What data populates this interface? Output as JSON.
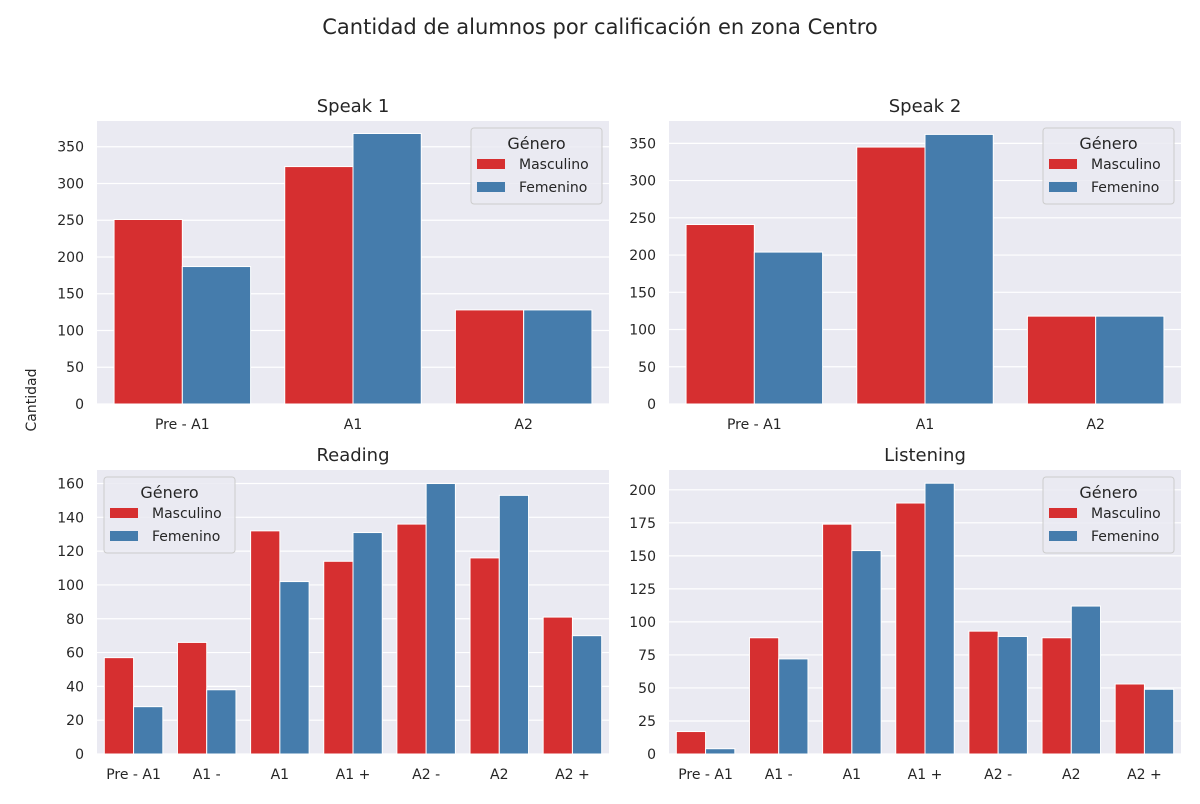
{
  "figure": {
    "suptitle": "Cantidad de alumnos por calificación en zona Centro",
    "shared_ylabel": "Cantidad",
    "colors": {
      "background": "#eaeaf2",
      "grid": "#ffffff",
      "text": "#262626"
    }
  },
  "chart_data": [
    {
      "type": "bar",
      "title": "Speak 1",
      "categories": [
        "Pre - A1",
        "A1",
        "A2"
      ],
      "series": [
        {
          "name": "Masculino",
          "color": "#d62f30",
          "values": [
            251,
            323,
            128
          ]
        },
        {
          "name": "Femenino",
          "color": "#457cac",
          "values": [
            187,
            368,
            128
          ]
        }
      ],
      "ylim": [
        0,
        385
      ],
      "yticks": [
        0,
        50,
        100,
        150,
        200,
        250,
        300,
        350
      ],
      "legend": {
        "title": "Género",
        "placement": "upper right"
      },
      "grid": true
    },
    {
      "type": "bar",
      "title": "Speak 2",
      "categories": [
        "Pre - A1",
        "A1",
        "A2"
      ],
      "series": [
        {
          "name": "Masculino",
          "color": "#d62f30",
          "values": [
            241,
            345,
            118
          ]
        },
        {
          "name": "Femenino",
          "color": "#457cac",
          "values": [
            204,
            362,
            118
          ]
        }
      ],
      "ylim": [
        0,
        380
      ],
      "yticks": [
        0,
        50,
        100,
        150,
        200,
        250,
        300,
        350
      ],
      "legend": {
        "title": "Género",
        "placement": "upper right"
      },
      "grid": true
    },
    {
      "type": "bar",
      "title": "Reading",
      "categories": [
        "Pre - A1",
        "A1 -",
        "A1",
        "A1 +",
        "A2 -",
        "A2",
        "A2 +"
      ],
      "series": [
        {
          "name": "Masculino",
          "color": "#d62f30",
          "values": [
            57,
            66,
            132,
            114,
            136,
            116,
            81
          ]
        },
        {
          "name": "Femenino",
          "color": "#457cac",
          "values": [
            28,
            38,
            102,
            131,
            160,
            153,
            70
          ]
        }
      ],
      "ylim": [
        0,
        168
      ],
      "yticks": [
        0,
        20,
        40,
        60,
        80,
        100,
        120,
        140,
        160
      ],
      "legend": {
        "title": "Género",
        "placement": "upper left"
      },
      "grid": true
    },
    {
      "type": "bar",
      "title": "Listening",
      "categories": [
        "Pre - A1",
        "A1 -",
        "A1",
        "A1 +",
        "A2 -",
        "A2",
        "A2 +"
      ],
      "series": [
        {
          "name": "Masculino",
          "color": "#d62f30",
          "values": [
            17,
            88,
            174,
            190,
            93,
            88,
            53
          ]
        },
        {
          "name": "Femenino",
          "color": "#457cac",
          "values": [
            4,
            72,
            154,
            205,
            89,
            112,
            49
          ]
        }
      ],
      "ylim": [
        0,
        215
      ],
      "yticks": [
        0,
        25,
        50,
        75,
        100,
        125,
        150,
        175,
        200
      ],
      "legend": {
        "title": "Género",
        "placement": "upper right"
      },
      "grid": true
    }
  ]
}
